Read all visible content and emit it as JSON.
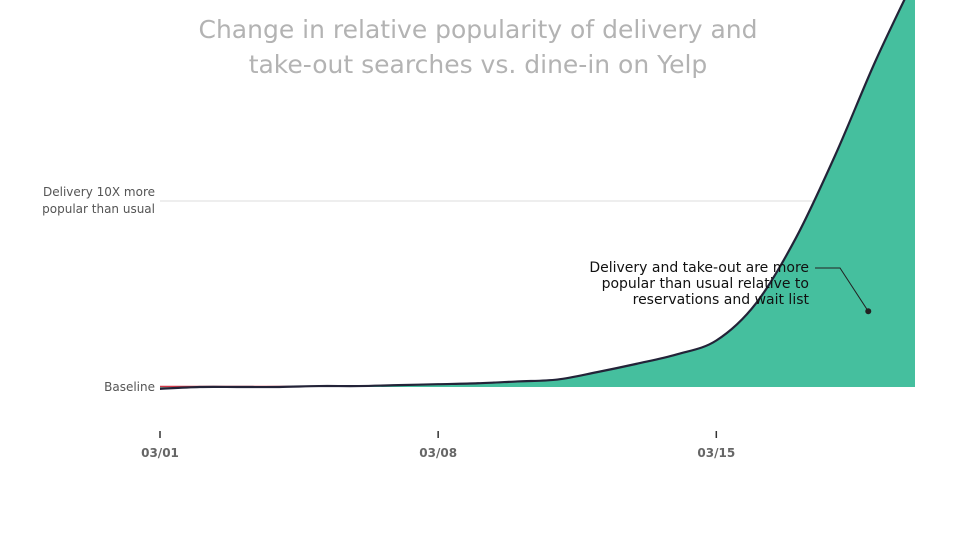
{
  "subtitle_lines": [
    "Change in relative popularity of delivery and",
    "take-out searches vs. dine-in on Yelp"
  ],
  "colors": {
    "area": "#45bf9e",
    "line": "#232338",
    "baseline_line": "#d43a4a",
    "grid": "#dddddd",
    "subtitle": "#b3b3b3"
  },
  "chart_data": {
    "type": "area",
    "subtitle": "Change in relative popularity of delivery and take-out searches vs. dine-in on Yelp",
    "x": [
      "03/01",
      "03/02",
      "03/03",
      "03/04",
      "03/05",
      "03/06",
      "03/07",
      "03/08",
      "03/09",
      "03/10",
      "03/11",
      "03/12",
      "03/13",
      "03/14",
      "03/15",
      "03/16",
      "03/17",
      "03/18",
      "03/19",
      "03/20"
    ],
    "series": [
      {
        "values": [
          -0.1,
          0.0,
          0.0,
          0.0,
          0.05,
          0.05,
          0.1,
          0.15,
          0.2,
          0.3,
          0.4,
          0.8,
          1.25,
          1.75,
          2.5,
          4.5,
          8.0,
          12.5,
          17.5,
          22.0
        ]
      }
    ],
    "y_ticks": [
      {
        "value": 0,
        "label": "Baseline"
      },
      {
        "value": 10,
        "label_lines": [
          "Delivery 10X more",
          "popular than usual"
        ]
      }
    ],
    "x_ticks": [
      "03/01",
      "03/08",
      "03/15"
    ],
    "ylim": [
      -2,
      23
    ],
    "grid": true,
    "annotation": {
      "lines": [
        "Delivery and take-out are more",
        "popular than usual relative to",
        "reservations and wait list"
      ],
      "x": "03/19",
      "y": 4.5
    }
  }
}
